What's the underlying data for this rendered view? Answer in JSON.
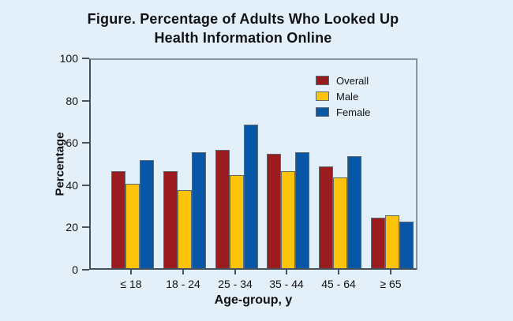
{
  "figure": {
    "title_line1": "Figure. Percentage of Adults Who Looked Up",
    "title_line2": "Health Information Online"
  },
  "colors": {
    "background": "#E4F0F9",
    "overall": "#9B1C1E",
    "male": "#FDC30B",
    "female": "#0857A6",
    "axis": "#45525B",
    "frame": "#8795A0"
  },
  "chart_data": {
    "type": "bar",
    "title": "Figure. Percentage of Adults Who Looked Up Health Information Online",
    "categories": [
      "≤ 18",
      "18 - 24",
      "25 - 34",
      "35 - 44",
      "45 - 64",
      "≥ 65"
    ],
    "series": [
      {
        "name": "Overall",
        "color": "#9B1C1E",
        "values": [
          46,
          46,
          56,
          54,
          48,
          24
        ]
      },
      {
        "name": "Male",
        "color": "#FDC30B",
        "values": [
          40,
          37,
          44,
          46,
          43,
          25
        ]
      },
      {
        "name": "Female",
        "color": "#0857A6",
        "values": [
          51,
          55,
          68,
          55,
          53,
          22
        ]
      }
    ],
    "xlabel": "Age-group, y",
    "ylabel": "Percentage",
    "ylim": [
      0,
      100
    ],
    "yticks": [
      0,
      20,
      40,
      60,
      80,
      100
    ],
    "grid": false,
    "legend_position": "top-right-inside"
  }
}
